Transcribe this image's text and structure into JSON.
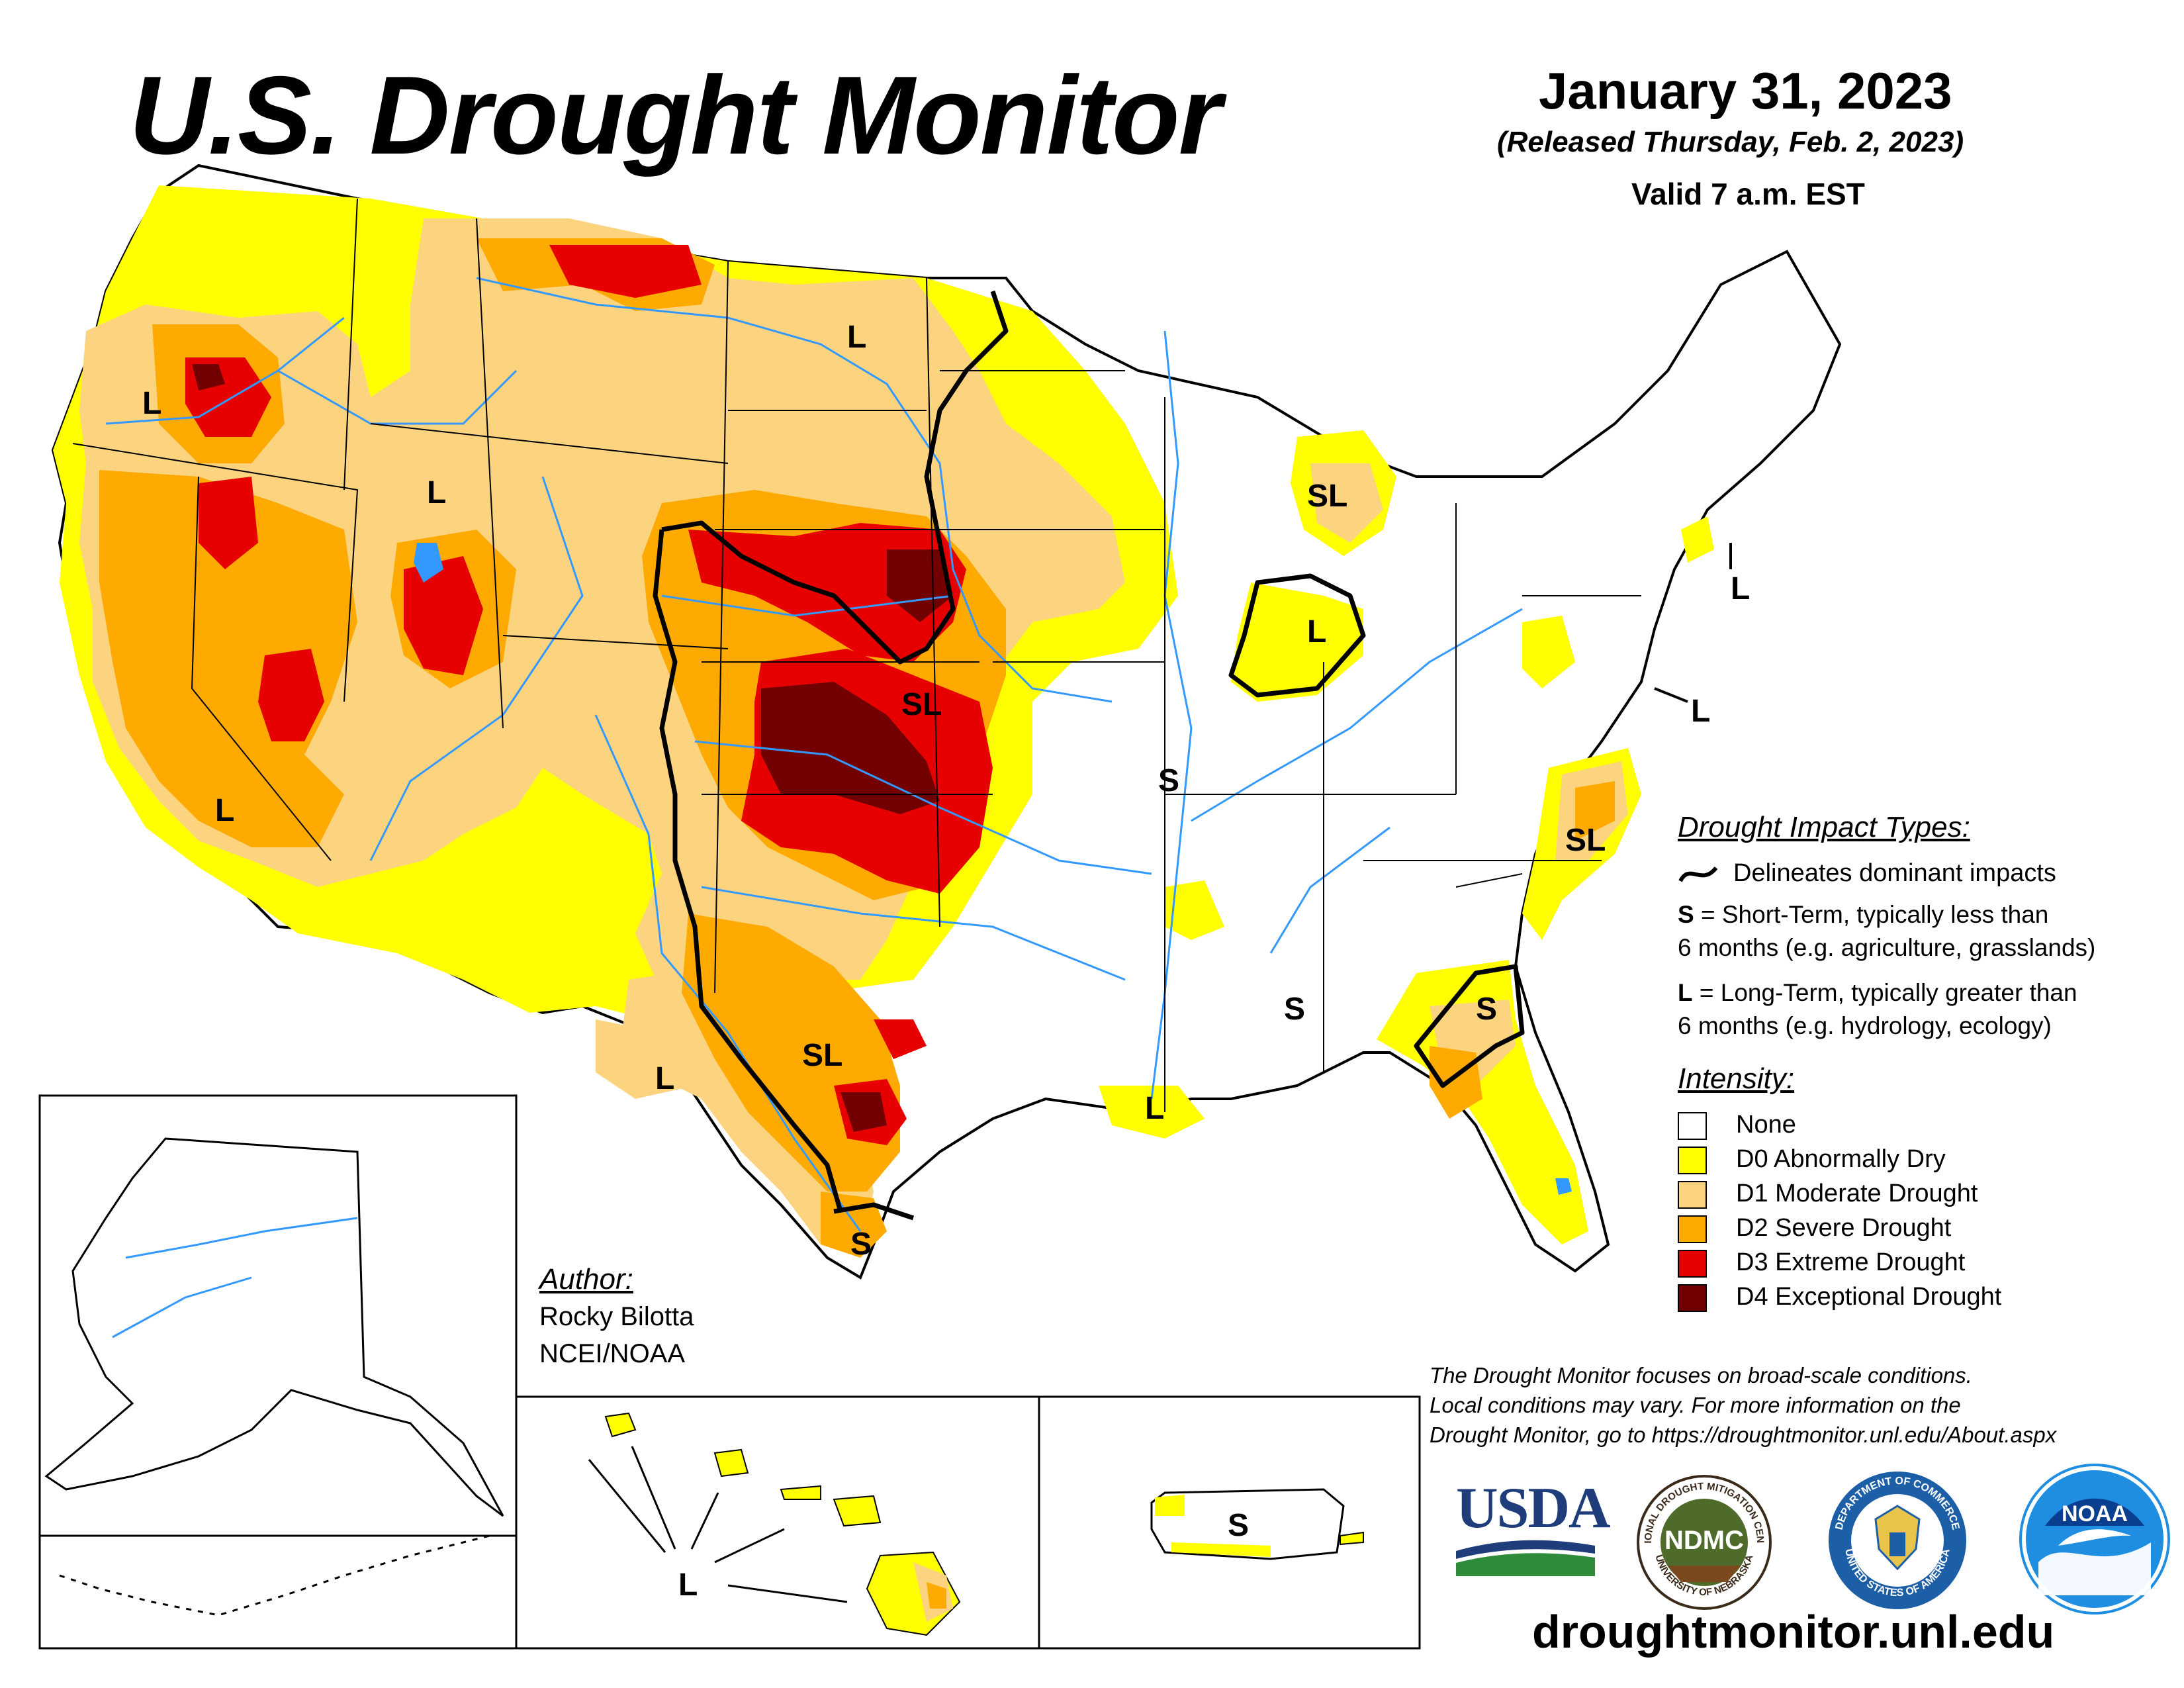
{
  "header": {
    "title": "U.S. Drought Monitor",
    "date": "January 31, 2023",
    "released": "(Released Thursday, Feb. 2, 2023)",
    "valid": "Valid 7 a.m. EST"
  },
  "map_labels": {
    "L_oregon": "L",
    "L_idaho": "L",
    "L_california": "L",
    "L_north_dakota": "L",
    "SL_kansas": "SL",
    "SL_texas": "SL",
    "L_west_texas": "L",
    "S_south_texas": "S",
    "S_arkansas": "S",
    "S_mississippi": "S",
    "L_louisiana": "L",
    "S_florida": "S",
    "SL_carolina": "SL",
    "L_virginia": "L",
    "L_new_york": "L",
    "L_indiana": "L",
    "SL_michigan": "SL",
    "L_hawaii": "L",
    "S_puerto_rico": "S"
  },
  "legend": {
    "impact_header": "Drought Impact Types:",
    "delineates": "Delineates dominant impacts",
    "short_term_key": "S",
    "short_term_desc_1": "= Short-Term, typically less than",
    "short_term_desc_2": "6 months (e.g. agriculture, grasslands)",
    "long_term_key": "L",
    "long_term_desc_1": "= Long-Term, typically greater than",
    "long_term_desc_2": "6 months (e.g. hydrology, ecology)",
    "intensity_header": "Intensity:",
    "levels": [
      {
        "label": "None",
        "color": "#ffffff"
      },
      {
        "label": "D0 Abnormally Dry",
        "color": "#ffff00"
      },
      {
        "label": "D1 Moderate Drought",
        "color": "#fcd37f"
      },
      {
        "label": "D2 Severe Drought",
        "color": "#ffaa00"
      },
      {
        "label": "D3 Extreme Drought",
        "color": "#e60000"
      },
      {
        "label": "D4 Exceptional Drought",
        "color": "#730000"
      }
    ]
  },
  "author": {
    "header": "Author:",
    "name": "Rocky Bilotta",
    "org": "NCEI/NOAA"
  },
  "note": {
    "line1": "The Drought Monitor focuses on broad-scale conditions.",
    "line2": "Local conditions may vary. For more information on the",
    "line3": "Drought Monitor, go to https://droughtmonitor.unl.edu/About.aspx"
  },
  "logos": {
    "usda": "USDA",
    "ndmc": "NDMC",
    "ndmc_ring_top": "NATIONAL DROUGHT MITIGATION CENTER",
    "ndmc_ring_bottom": "UNIVERSITY OF NEBRASKA",
    "commerce_ring_top": "DEPARTMENT OF COMMERCE",
    "commerce_ring_bottom": "UNITED STATES OF AMERICA",
    "noaa": "NOAA"
  },
  "url": "droughtmonitor.unl.edu",
  "colors": {
    "d0": "#ffff00",
    "d1": "#fcd37f",
    "d2": "#ffaa00",
    "d3": "#e60000",
    "d4": "#730000",
    "water": "#3399ff",
    "boundary": "#000000"
  }
}
